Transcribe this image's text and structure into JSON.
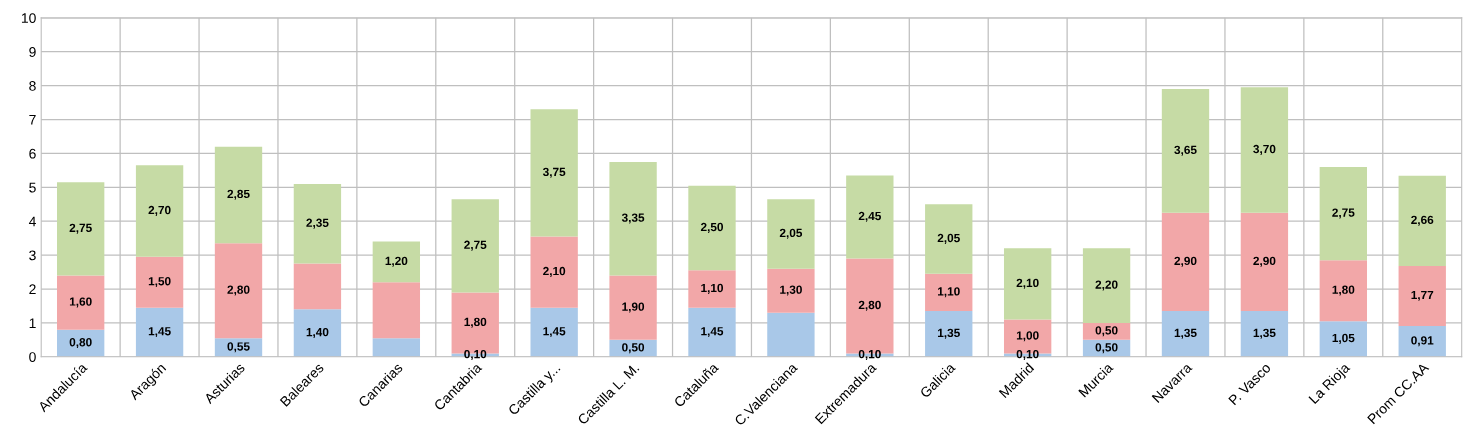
{
  "chart_data": {
    "type": "bar",
    "stacked": true,
    "categories": [
      "Andalucía",
      "Aragón",
      "Asturias",
      "Baleares",
      "Canarias",
      "Cantabria",
      "Castilla y...",
      "Castilla L. M.",
      "Cataluña",
      "C.Valenciana",
      "Extremadura",
      "Galicia",
      "Madrid",
      "Murcia",
      "Navarra",
      "P. Vasco",
      "La Rioja",
      "Prom CC.AA"
    ],
    "series": [
      {
        "color": "#a9c8e8",
        "values": [
          0.8,
          1.45,
          0.55,
          1.4,
          0.55,
          0.1,
          1.45,
          0.5,
          1.45,
          1.3,
          0.1,
          1.35,
          0.1,
          0.5,
          1.35,
          1.35,
          1.05,
          0.91
        ],
        "value_labels": [
          "0,80",
          "1,45",
          "0,55",
          "1,40",
          null,
          "0,10",
          "1,45",
          "0,50",
          "1,45",
          null,
          "0,10",
          "1,35",
          "0,10",
          "0,50",
          "1,35",
          "1,35",
          "1,05",
          "0,91"
        ]
      },
      {
        "color": "#f2a7a8",
        "values": [
          1.6,
          1.5,
          2.8,
          1.35,
          1.65,
          1.8,
          2.1,
          1.9,
          1.1,
          1.3,
          2.8,
          1.1,
          1.0,
          0.5,
          2.9,
          2.9,
          1.8,
          1.77
        ],
        "value_labels": [
          "1,60",
          "1,50",
          "2,80",
          null,
          null,
          "1,80",
          "2,10",
          "1,90",
          "1,10",
          "1,30",
          "2,80",
          "1,10",
          "1,00",
          "0,50",
          "2,90",
          "2,90",
          "1,80",
          "1,77"
        ]
      },
      {
        "color": "#c6dba5",
        "values": [
          2.75,
          2.7,
          2.85,
          2.35,
          1.2,
          2.75,
          3.75,
          3.35,
          2.5,
          2.05,
          2.45,
          2.05,
          2.1,
          2.2,
          3.65,
          3.7,
          2.75,
          2.66
        ],
        "value_labels": [
          "2,75",
          "2,70",
          "2,85",
          "2,35",
          "1,20",
          "2,75",
          "3,75",
          "3,35",
          "2,50",
          "2,05",
          "2,45",
          "2,05",
          "2,10",
          "2,20",
          "3,65",
          "3,70",
          "2,75",
          "2,66"
        ]
      }
    ],
    "ylim": [
      0,
      10
    ],
    "yticks": [
      0,
      1,
      2,
      3,
      4,
      5,
      6,
      7,
      8,
      9,
      10
    ],
    "grid": true
  }
}
